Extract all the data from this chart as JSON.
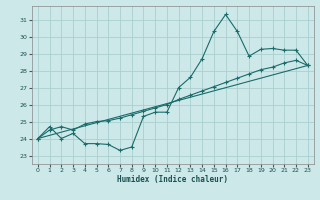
{
  "xlabel": "Humidex (Indice chaleur)",
  "xlim": [
    -0.5,
    23.5
  ],
  "ylim": [
    22.5,
    31.8
  ],
  "xticks": [
    0,
    1,
    2,
    3,
    4,
    5,
    6,
    7,
    8,
    9,
    10,
    11,
    12,
    13,
    14,
    15,
    16,
    17,
    18,
    19,
    20,
    21,
    22,
    23
  ],
  "yticks": [
    23,
    24,
    25,
    26,
    27,
    28,
    29,
    30,
    31
  ],
  "background_color": "#cde8e8",
  "grid_color": "#aacfcf",
  "line_color": "#1a6b6b",
  "line1_x": [
    0,
    1,
    2,
    3,
    4,
    5,
    6,
    7,
    8,
    9,
    10,
    11,
    12,
    13,
    14,
    15,
    16,
    17,
    18,
    19,
    20,
    21,
    22,
    23
  ],
  "line1_y": [
    24.0,
    24.7,
    24.0,
    24.3,
    23.7,
    23.7,
    23.65,
    23.3,
    23.5,
    25.3,
    25.55,
    25.55,
    27.0,
    27.6,
    28.7,
    30.3,
    31.3,
    30.3,
    28.85,
    29.25,
    29.3,
    29.2,
    29.2,
    28.3
  ],
  "line2_x": [
    0,
    1,
    2,
    3,
    4,
    5,
    6,
    7,
    8,
    9,
    10,
    11,
    12,
    13,
    14,
    15,
    16,
    17,
    18,
    19,
    20,
    21,
    22,
    23
  ],
  "line2_y": [
    24.0,
    24.5,
    24.7,
    24.5,
    24.85,
    25.0,
    25.05,
    25.2,
    25.4,
    25.6,
    25.8,
    26.0,
    26.3,
    26.55,
    26.8,
    27.05,
    27.3,
    27.55,
    27.8,
    28.05,
    28.2,
    28.45,
    28.6,
    28.3
  ],
  "line3_x": [
    0,
    23
  ],
  "line3_y": [
    24.0,
    28.3
  ]
}
